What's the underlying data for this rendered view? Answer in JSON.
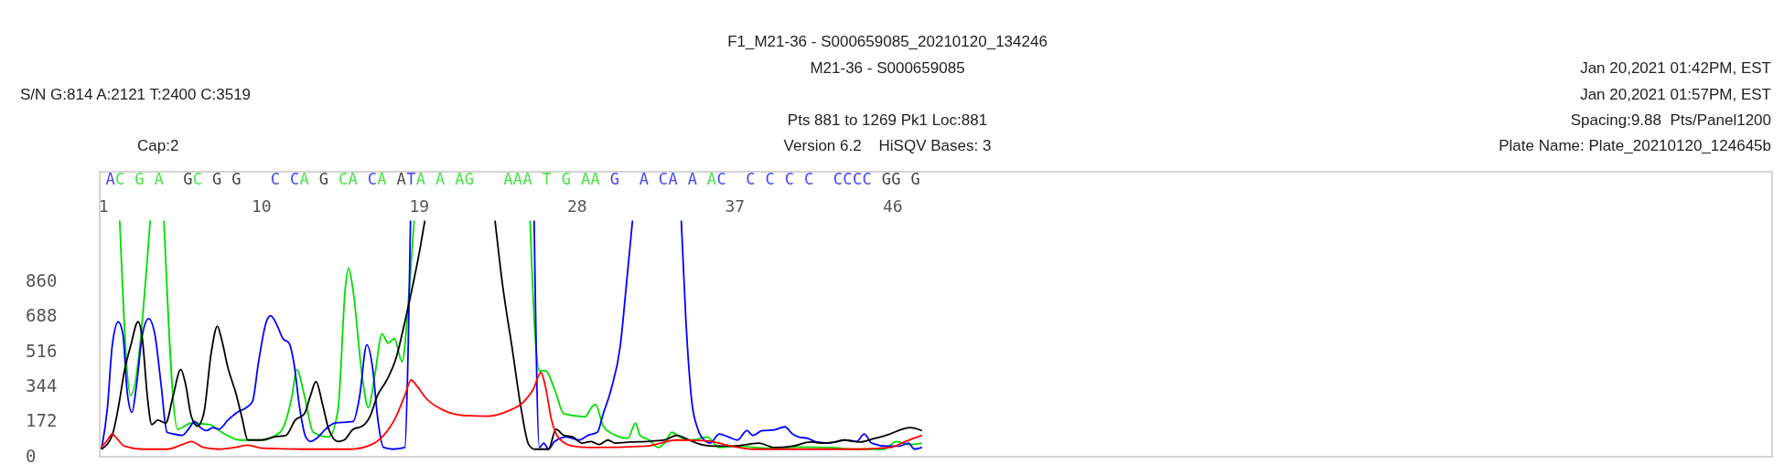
{
  "chart_data": {
    "type": "line",
    "title": "F1_M21-36 - S000659085_20210120_134246",
    "subtitle": "M21-36 - S000659085",
    "annotations": [
      "S/N G:814 A:2121 T:2400 C:3519",
      "Cap:2",
      "Pts 881 to 1269 Pk1 Loc:881",
      "Version 6.2    HiSQV Bases: 3",
      "Jan 20,2021 01:42PM, EST",
      "Jan 20,2021 01:57PM, EST",
      "Spacing:9.88  Pts/Panel1200",
      "Plate Name: Plate_20210120_124645b",
      "AC G A  GC G G   C CA G CA CA ATA A AG   AAA T G AA G  A CA A AC  C C C C  CCCC GG G"
    ],
    "xlim": [
      0.78,
      96.14
    ],
    "xticks": [
      1,
      10,
      19,
      28,
      37,
      46
    ],
    "ylim": [
      0,
      1400
    ],
    "yticks": [
      0,
      172,
      344,
      516,
      688,
      860
    ],
    "series": [
      {
        "color": "#00dd00",
        "x": [
          1.92,
          2.54,
          3.66,
          4.03,
          4.44,
          5.22,
          6.01,
          7.06,
          7.74,
          8.79,
          10.01,
          11.06,
          11.75,
          12.01,
          12.45,
          12.96,
          13.84,
          14.36,
          14.8,
          14.97,
          15.23,
          15.75,
          16.1,
          16.45,
          16.88,
          17.23,
          17.58,
          18.02,
          18.45,
          18.71,
          21.27,
          25.32,
          25.59,
          25.85,
          26.19,
          26.72,
          27.24,
          28.46,
          28.81,
          29.06,
          29.49,
          30.19,
          30.89,
          31.33,
          31.59,
          32.11,
          32.63,
          32.98,
          33.41,
          33.85,
          34.54,
          35.41,
          36.11,
          37.15,
          38.9,
          40.63,
          42.37,
          44.12,
          45.5,
          46.2,
          46.9,
          47.67
        ],
        "values": [
          1160,
          301,
          1160,
          null,
          1160,
          135,
          165,
          158,
          120,
          82,
          82,
          120,
          301,
          429,
          301,
          120,
          97,
          226,
          844,
          927,
          814,
          392,
          241,
          392,
          603,
          558,
          580,
          467,
          844,
          1160,
          null,
          1160,
          618,
          422,
          422,
          331,
          211,
          196,
          241,
          256,
          150,
          105,
          90,
          165,
          105,
          82,
          45,
          67,
          120,
          97,
          82,
          97,
          45,
          52,
          42,
          48,
          45,
          37,
          37,
          75,
          60,
          67
        ]
      },
      {
        "color": "#0000ff",
        "x": [
          0.88,
          1.22,
          1.49,
          1.84,
          2.1,
          2.35,
          2.62,
          2.87,
          3.22,
          3.57,
          3.92,
          4.27,
          4.62,
          4.97,
          5.49,
          5.84,
          6.19,
          6.53,
          6.88,
          7.22,
          7.57,
          8.09,
          8.62,
          9.14,
          9.49,
          9.84,
          10.28,
          10.53,
          10.88,
          11.23,
          11.58,
          11.84,
          12.18,
          12.53,
          12.8,
          13.14,
          13.66,
          14.18,
          15.23,
          15.58,
          16.01,
          16.36,
          16.62,
          16.97,
          17.5,
          18.18,
          18.37,
          18.5,
          21.27,
          25.55,
          25.85,
          26.1,
          26.37,
          26.72,
          27.41,
          28.11,
          28.62,
          29.15,
          29.49,
          29.94,
          30.46,
          30.81,
          31.16,
          32.48,
          33.94,
          34.19,
          34.54,
          34.89,
          35.24,
          35.59,
          36.11,
          36.63,
          37.15,
          37.68,
          38.03,
          38.55,
          39.25,
          39.85,
          40.28,
          40.63,
          41.15,
          41.68,
          42.37,
          43.24,
          43.94,
          44.37,
          44.8,
          45.68,
          46.37,
          46.9,
          47.24,
          47.67
        ],
        "values": [
          37,
          241,
          543,
          663,
          603,
          316,
          218,
          346,
          603,
          678,
          603,
          362,
          120,
          112,
          105,
          135,
          173,
          143,
          128,
          143,
          135,
          180,
          218,
          241,
          271,
          467,
          663,
          693,
          648,
          580,
          558,
          467,
          241,
          97,
          75,
          90,
          135,
          165,
          173,
          286,
          550,
          422,
          196,
          45,
          37,
          45,
          543,
          1160,
          null,
          1160,
          45,
          67,
          37,
          75,
          97,
          82,
          105,
          120,
          211,
          331,
          543,
          844,
          1160,
          null,
          1160,
          693,
          271,
          135,
          82,
          67,
          112,
          97,
          82,
          128,
          105,
          128,
          132,
          147,
          112,
          97,
          90,
          72,
          67,
          82,
          75,
          112,
          67,
          52,
          52,
          67,
          37,
          45
        ]
      },
      {
        "color": "#000000",
        "x": [
          0.88,
          1.49,
          1.84,
          2.19,
          2.54,
          2.97,
          3.22,
          3.49,
          3.75,
          4.09,
          4.54,
          4.97,
          5.4,
          5.66,
          6.01,
          6.36,
          6.71,
          7.14,
          7.49,
          7.74,
          8.09,
          8.53,
          8.88,
          9.23,
          10.01,
          10.71,
          11.4,
          11.93,
          12.45,
          12.8,
          13.11,
          13.49,
          13.84,
          14.36,
          14.71,
          15.23,
          15.75,
          16.18,
          16.62,
          17.15,
          17.67,
          18.18,
          18.71,
          19.05,
          19.32,
          21.27,
          23.32,
          23.75,
          24.28,
          24.8,
          25.24,
          25.59,
          26.37,
          26.8,
          27.24,
          27.76,
          28.27,
          28.81,
          29.24,
          29.76,
          30.19,
          31.06,
          31.94,
          32.98,
          33.68,
          34.38,
          35.06,
          35.76,
          36.81,
          37.68,
          38.37,
          39.25,
          40.28,
          41.33,
          42.02,
          42.72,
          43.24,
          44.12,
          44.98,
          45.85,
          46.55,
          46.99,
          47.67
        ],
        "values": [
          37,
          105,
          241,
          422,
          543,
          663,
          573,
          301,
          158,
          180,
          165,
          301,
          429,
          362,
          196,
          150,
          211,
          512,
          641,
          573,
          437,
          316,
          196,
          82,
          82,
          97,
          105,
          180,
          211,
          301,
          369,
          256,
          135,
          75,
          82,
          135,
          150,
          196,
          301,
          377,
          482,
          663,
          875,
          1025,
          1160,
          null,
          1160,
          844,
          543,
          241,
          60,
          37,
          37,
          135,
          105,
          97,
          67,
          75,
          60,
          82,
          67,
          72,
          75,
          82,
          105,
          82,
          60,
          52,
          52,
          60,
          67,
          45,
          52,
          72,
          67,
          72,
          82,
          72,
          90,
          112,
          135,
          143,
          128
        ]
      },
      {
        "color": "#ff0000",
        "x": [
          0.88,
          1.22,
          1.49,
          1.75,
          2.19,
          3.22,
          4.62,
          5.49,
          6.01,
          6.71,
          7.57,
          8.44,
          9.23,
          10.01,
          12.45,
          15.06,
          16.28,
          16.97,
          17.67,
          18.18,
          18.53,
          18.88,
          19.4,
          20.45,
          21.49,
          22.89,
          24.1,
          24.97,
          25.5,
          25.94,
          26.19,
          26.54,
          26.97,
          27.76,
          28.81,
          31.94,
          33.68,
          35.41,
          36.81,
          38.03,
          40.63,
          44.12,
          45.85,
          46.72,
          47.67
        ],
        "values": [
          45,
          82,
          112,
          90,
          52,
          37,
          37,
          60,
          75,
          45,
          37,
          45,
          57,
          42,
          37,
          37,
          60,
          105,
          196,
          301,
          377,
          346,
          286,
          226,
          203,
          199,
          226,
          271,
          331,
          414,
          346,
          181,
          90,
          52,
          45,
          52,
          82,
          78,
          52,
          37,
          37,
          37,
          45,
          75,
          105
        ]
      }
    ]
  }
}
